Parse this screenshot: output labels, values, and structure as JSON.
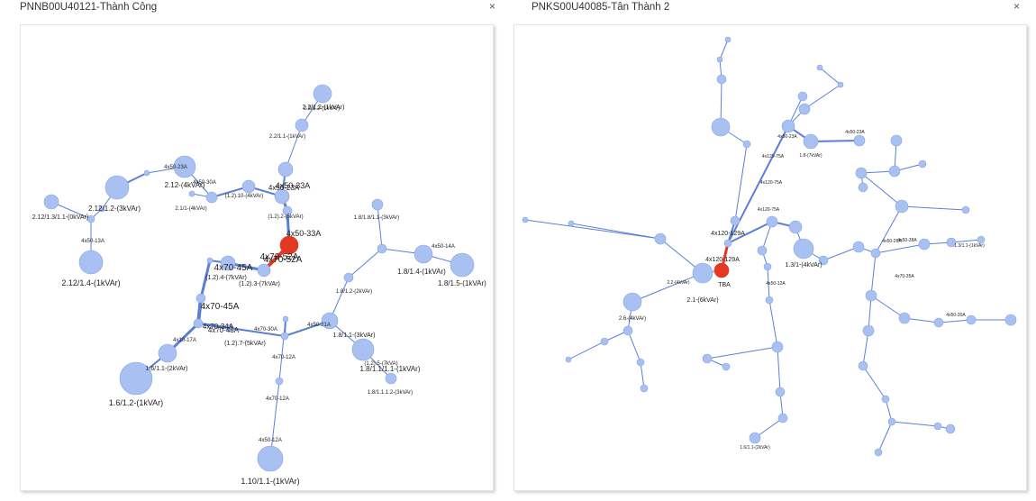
{
  "colors": {
    "node": "#a9c1f2",
    "node_stroke": "#86a4e6",
    "edge": "#5b7fd6",
    "source": "#e23a22"
  },
  "left": {
    "title": "PNNB00U40121-Thành Công",
    "close_icon": "×",
    "source_labels": [
      "4x70-52A",
      "4x50-33A",
      "4x70-52A"
    ],
    "edge_labels": [
      "4x50-23A",
      "4x50-33A",
      "4x70-45A",
      "4x70-45A",
      "4x70-45A",
      "4x70-34A",
      "2.12/1.2-(3kVAr)",
      "4x50-23A",
      "(1.2).10-(4kVAr)",
      "(1.2).4-(7kVAr)",
      "(1.2).3-(7kVAr)",
      "(1.2).7-(5kVAr)",
      "1.8/1.1-(3kVAr)",
      "1.6/1.1-(2kVAr)",
      "4x70-12A",
      "4x70-12A",
      "4x50-12A",
      "4x50-21A",
      "4x70-30A",
      "4x50-30A",
      "4x50-13A",
      "(1.2).2-(5kVAr)",
      "2.2/1.2-(1kVAr)",
      "2.2/1.1-(1kVAr)",
      "1.8/1.2-(2kVAr)",
      "1.8/1.8/1.1-(3kVAr)",
      "1.8/1.1.1.2-(3kVAr)",
      "4x10-17A",
      "(1.2).5-(7kVA)",
      "4x50-14A",
      "2.1/1-(4kVAr)"
    ],
    "node_labels": [
      "2.12/1.4-(1kVAr)",
      "1.6/1.2-(1kVAr)",
      "1.10/1.1-(1kVAr)",
      "1.8/1.1/1.1-(1kVAr)",
      "1.8/1.4-(1kVAr)",
      "1.8/1.5-(1kVAr)",
      "2.12-(4kVAr)",
      "2.12/1.3/1.1-(0kVAr)",
      "2.2/1.2-(1kVAr)"
    ]
  },
  "right": {
    "title": "PNKS00U40085-Tân Thành 2",
    "close_icon": "×",
    "source_labels": [
      "4x120-129A",
      "4x120-129A",
      "TBA"
    ],
    "node_labels": [
      "2.1-(6kVAr)",
      "2.2-(4kVAr)",
      "2.6-(4kVAr)",
      "1.6/1.1-(2kVAr)",
      "1.8-(7kVAr)",
      "1.3/1-(4kVAr)",
      "1.3/1.1-(1kVAr)"
    ],
    "edge_labels": [
      "4x120-75A",
      "4x120-75A",
      "4x120-75A",
      "4x50-23A",
      "4x50-23A",
      "4x50-26A",
      "4x70-35A",
      "4x50-12A",
      "4x50-38A",
      "4x50-30A"
    ]
  }
}
